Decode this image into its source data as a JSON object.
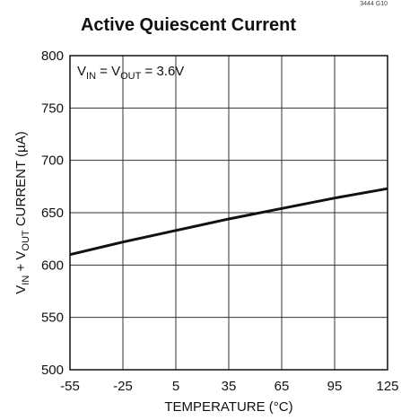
{
  "chart_data": {
    "type": "line",
    "title": "Active Quiescent Current",
    "figure_id": "3444 G10",
    "annotation": [
      "V",
      "IN",
      " = V",
      "OUT",
      " = 3.6V"
    ],
    "ylabel": [
      "V",
      "IN",
      " + V",
      "OUT",
      " CURRENT (µA)"
    ],
    "xlabel": "TEMPERATURE (°C)",
    "x": [
      -55,
      -25,
      5,
      35,
      65,
      95,
      125
    ],
    "series": [
      {
        "color": "#111111",
        "values": [
          610,
          622,
          633,
          644,
          654,
          664,
          673
        ]
      }
    ],
    "xlim": [
      -55,
      125
    ],
    "xticks": [
      -55,
      -25,
      5,
      35,
      65,
      95,
      125
    ],
    "ylim": [
      500,
      800
    ],
    "yticks": [
      500,
      550,
      600,
      650,
      700,
      750,
      800
    ],
    "grid": true
  }
}
